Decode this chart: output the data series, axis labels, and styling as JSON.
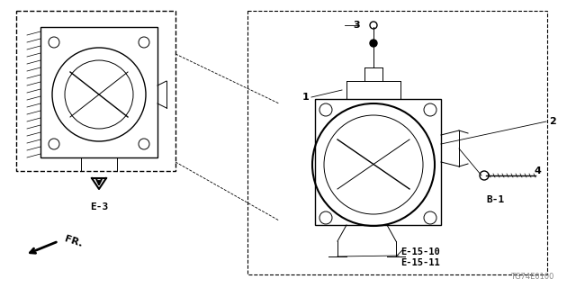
{
  "bg_color": "#ffffff",
  "line_color": "#000000",
  "light_gray": "#aaaaaa",
  "diagram_color": "#333333",
  "title_code": "TG74E0100",
  "labels": {
    "e3": "E-3",
    "b1": "B-1",
    "e1510": "E-15-10",
    "e1511": "E-15-11",
    "fr": "FR.",
    "part1": "1",
    "part2": "2",
    "part3": "3",
    "part4": "4"
  }
}
